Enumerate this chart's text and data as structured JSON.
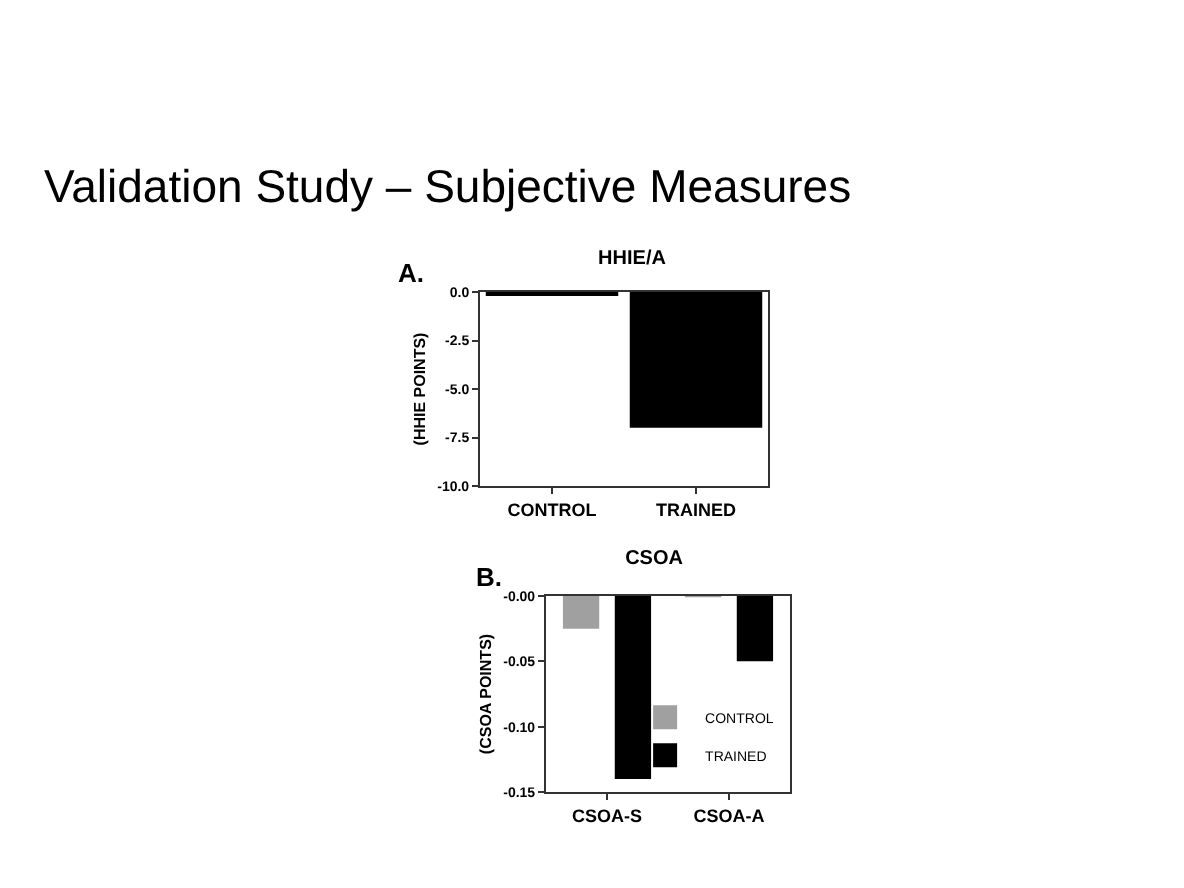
{
  "chart_data": [
    {
      "type": "other",
      "title": "Validation Study – Subjective Measures"
    },
    {
      "type": "bar",
      "title": "HHIE/A",
      "annotations": [
        "A."
      ],
      "ylabel": "(HHIE POINTS)",
      "categories": [
        "CONTROL",
        "TRAINED"
      ],
      "values": [
        -0.2,
        -7
      ],
      "color": "#000000",
      "ylim": [
        -10,
        0
      ],
      "yticks": [
        {
          "value": -10,
          "label": "-10.0"
        },
        {
          "value": -7.5,
          "label": "-7.5"
        },
        {
          "value": -5,
          "label": "-5.0"
        },
        {
          "value": -2.5,
          "label": "-2.5"
        },
        {
          "value": 0,
          "label": "0.0"
        }
      ],
      "grid": false,
      "legend": false
    },
    {
      "type": "bar",
      "title": "CSOA",
      "annotations": [
        "B."
      ],
      "ylabel": "(CSOA POINTS)",
      "categories": [
        "CSOA-S",
        "CSOA-A"
      ],
      "series": [
        {
          "name": "CONTROL",
          "color": "#a0a0a0",
          "values": [
            -0.025,
            -0.001
          ]
        },
        {
          "name": "TRAINED",
          "color": "#000000",
          "values": [
            -0.14,
            -0.05
          ]
        }
      ],
      "ylim": [
        -0.15,
        0
      ],
      "yticks": [
        {
          "value": -0.15,
          "label": "-0.15"
        },
        {
          "value": -0.1,
          "label": "-0.10"
        },
        {
          "value": -0.05,
          "label": "-0.05"
        },
        {
          "value": 0,
          "label": "-0.00"
        }
      ],
      "grid": false,
      "legend": "bottom right"
    }
  ]
}
